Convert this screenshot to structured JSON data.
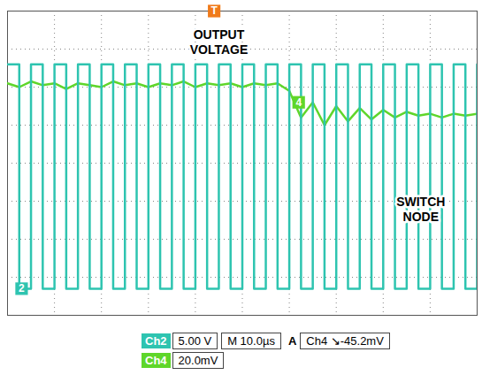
{
  "chart_data": {
    "type": "line",
    "x": [
      0,
      2.5,
      5,
      7.5,
      10,
      12.5,
      15,
      17.5,
      20,
      22.5,
      25,
      27.5,
      30,
      32.5,
      35,
      37.5,
      40,
      42.5,
      45,
      47.5,
      50,
      52.5,
      55,
      57.5,
      60,
      62.5,
      65,
      67.5,
      70,
      72.5,
      75,
      77.5,
      80,
      82.5,
      85,
      87.5,
      90,
      92.5,
      95,
      97.5,
      100
    ],
    "series": [
      {
        "name": "OUTPUT VOLTAGE",
        "color": "#5fd62a",
        "line_style": "solid",
        "values": [
          2.1,
          2.0,
          2.15,
          2.05,
          2.1,
          1.95,
          2.1,
          2.05,
          2.0,
          2.15,
          2.05,
          2.1,
          2.0,
          2.1,
          2.05,
          2.15,
          2.0,
          2.1,
          2.05,
          2.1,
          2.0,
          2.1,
          2.05,
          2.1,
          1.9,
          1.2,
          1.6,
          1.0,
          1.5,
          1.1,
          1.45,
          1.15,
          1.4,
          1.2,
          1.35,
          1.25,
          1.3,
          1.2,
          1.3,
          1.25,
          1.3
        ]
      },
      {
        "name": "SWITCH NODE",
        "color": "#2ec4b0",
        "line_style": "step",
        "values": [
          2.6,
          -3.3,
          2.6,
          -3.3,
          2.6,
          -3.3,
          2.6,
          -3.3,
          2.6,
          -3.3,
          2.6,
          -3.3,
          2.6,
          -3.3,
          2.6,
          -3.3,
          2.6,
          -3.3,
          2.6,
          -3.3,
          2.6,
          -3.3,
          2.6,
          -3.3,
          2.6,
          -3.3,
          2.6,
          -3.3,
          2.6,
          -3.3,
          2.6,
          -3.3,
          2.6,
          -3.3,
          2.6,
          -3.3,
          2.6,
          -3.3,
          2.6,
          -3.3,
          2.6
        ]
      }
    ],
    "xlim": [
      0,
      100
    ],
    "ylim": [
      -4,
      4
    ],
    "xticks": [
      0,
      10,
      20,
      30,
      40,
      50,
      60,
      70,
      80,
      90,
      100
    ],
    "yticks": [
      -4,
      -3,
      -2,
      -1,
      0,
      1,
      2,
      3,
      4
    ],
    "grid": true,
    "tick_labels": false,
    "markers": {
      "trigger": "T",
      "ch2": "2",
      "ch4": "4"
    },
    "readout": {
      "ch2_label": "Ch2",
      "ch2_scale": "5.00 V",
      "time_prefix": "M",
      "time_scale": "10.0µs",
      "trigger_prefix": "A",
      "trigger_source": "Ch4",
      "trigger_slope": "↘",
      "trigger_level": "-45.2mV",
      "ch4_label": "Ch4",
      "ch4_scale": "20.0mV"
    }
  }
}
